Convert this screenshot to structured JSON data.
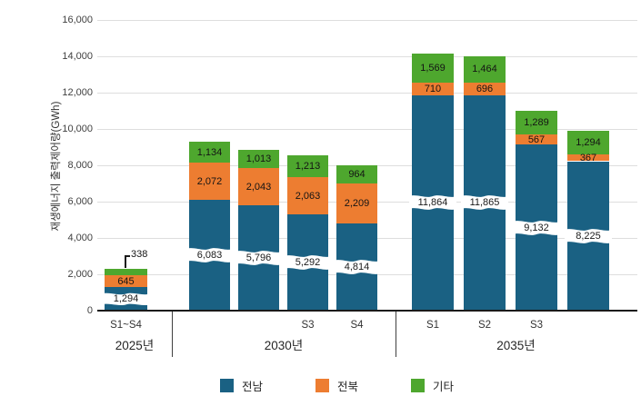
{
  "chart_data": {
    "type": "bar",
    "stacked": true,
    "title": "",
    "xlabel": "",
    "ylabel": "재생에너지 출력제어량(GWh)",
    "ylim": [
      0,
      16000
    ],
    "y_tick_step": 2000,
    "grid": true,
    "legend_position": "bottom",
    "series_order": [
      "전남",
      "전북",
      "기타"
    ],
    "series": [
      {
        "name": "전남",
        "key": "jeonnam",
        "color": "#1A6183"
      },
      {
        "name": "전북",
        "key": "jeonbuk",
        "color": "#ED7D31"
      },
      {
        "name": "기타",
        "key": "etc",
        "color": "#4EA72E"
      }
    ],
    "groups": [
      {
        "label": "2025년",
        "bars": [
          {
            "tick": "S1~S4",
            "values": [
              1294,
              645,
              338
            ],
            "green_callout": true
          }
        ]
      },
      {
        "label": "2030년",
        "bars": [
          {
            "tick": "",
            "values": [
              6083,
              2072,
              1134
            ]
          },
          {
            "tick": "",
            "values": [
              5796,
              2043,
              1013
            ]
          },
          {
            "tick": "S3",
            "values": [
              5292,
              2063,
              1213
            ]
          },
          {
            "tick": "S4",
            "values": [
              4814,
              2209,
              964
            ]
          }
        ]
      },
      {
        "label": "2035년",
        "bars": [
          {
            "tick": "S1",
            "values": [
              11864,
              710,
              1569
            ]
          },
          {
            "tick": "S2",
            "values": [
              11865,
              696,
              1464
            ]
          },
          {
            "tick": "S3",
            "values": [
              9132,
              567,
              1289
            ]
          },
          {
            "tick": "",
            "values": [
              8225,
              367,
              1294
            ]
          }
        ]
      }
    ],
    "colors": {
      "gridline": "#dedede",
      "axis": "#1a1a1a",
      "band_fill": "#ffffff",
      "label_text": "#141414"
    }
  }
}
